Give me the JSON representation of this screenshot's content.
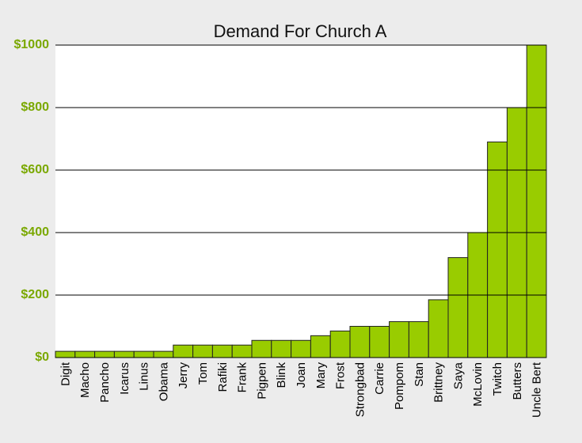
{
  "chart_data": {
    "type": "bar",
    "title": "Demand For Church A",
    "xlabel": "",
    "ylabel": "",
    "ylim": [
      0,
      1000
    ],
    "yticks": [
      0,
      200,
      400,
      600,
      800,
      1000
    ],
    "ytick_labels": [
      "$0",
      "$200",
      "$400",
      "$600",
      "$800",
      "$1000"
    ],
    "grid": true,
    "categories": [
      "Digit",
      "Macho",
      "Pancho",
      "Icarus",
      "Linus",
      "Obama",
      "Jerry",
      "Tom",
      "Rafiki",
      "Frank",
      "Pigpen",
      "Blink",
      "Joan",
      "Mary",
      "Frost",
      "Strongbad",
      "Carrie",
      "Pompom",
      "Stan",
      "Brittney",
      "Saya",
      "McLovin",
      "Twitch",
      "Butters",
      "Uncle Bert"
    ],
    "values": [
      20,
      20,
      20,
      20,
      20,
      20,
      40,
      40,
      40,
      40,
      55,
      55,
      55,
      70,
      85,
      100,
      100,
      115,
      115,
      185,
      320,
      400,
      690,
      800,
      1000
    ],
    "bar_color": "#99cc00",
    "tick_label_color": "#7aa800",
    "background": "#ececec"
  }
}
